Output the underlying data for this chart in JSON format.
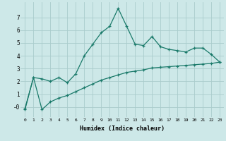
{
  "xlabel": "Humidex (Indice chaleur)",
  "x": [
    0,
    1,
    2,
    3,
    4,
    5,
    6,
    7,
    8,
    9,
    10,
    11,
    12,
    13,
    14,
    15,
    16,
    17,
    18,
    19,
    20,
    21,
    22,
    23
  ],
  "line1": [
    -0.1,
    2.3,
    2.2,
    2.0,
    2.3,
    1.9,
    2.6,
    4.0,
    4.9,
    5.8,
    6.3,
    7.7,
    6.3,
    4.9,
    4.8,
    5.5,
    4.7,
    4.5,
    4.4,
    4.3,
    4.6,
    4.6,
    4.1,
    3.5
  ],
  "line2": [
    -0.2,
    2.3,
    -0.2,
    0.4,
    0.7,
    0.9,
    1.2,
    1.5,
    1.8,
    2.1,
    2.3,
    2.5,
    2.7,
    2.8,
    2.9,
    3.05,
    3.1,
    3.15,
    3.2,
    3.25,
    3.3,
    3.35,
    3.4,
    3.5
  ],
  "line_color": "#1a7a6a",
  "bg_color": "#cde8e8",
  "grid_color": "#aacccc",
  "ylim": [
    -0.8,
    8.2
  ],
  "yticks": [
    0,
    1,
    2,
    3,
    4,
    5,
    6,
    7
  ],
  "ytick_labels": [
    "-0",
    "1",
    "2",
    "3",
    "4",
    "5",
    "6",
    "7"
  ]
}
